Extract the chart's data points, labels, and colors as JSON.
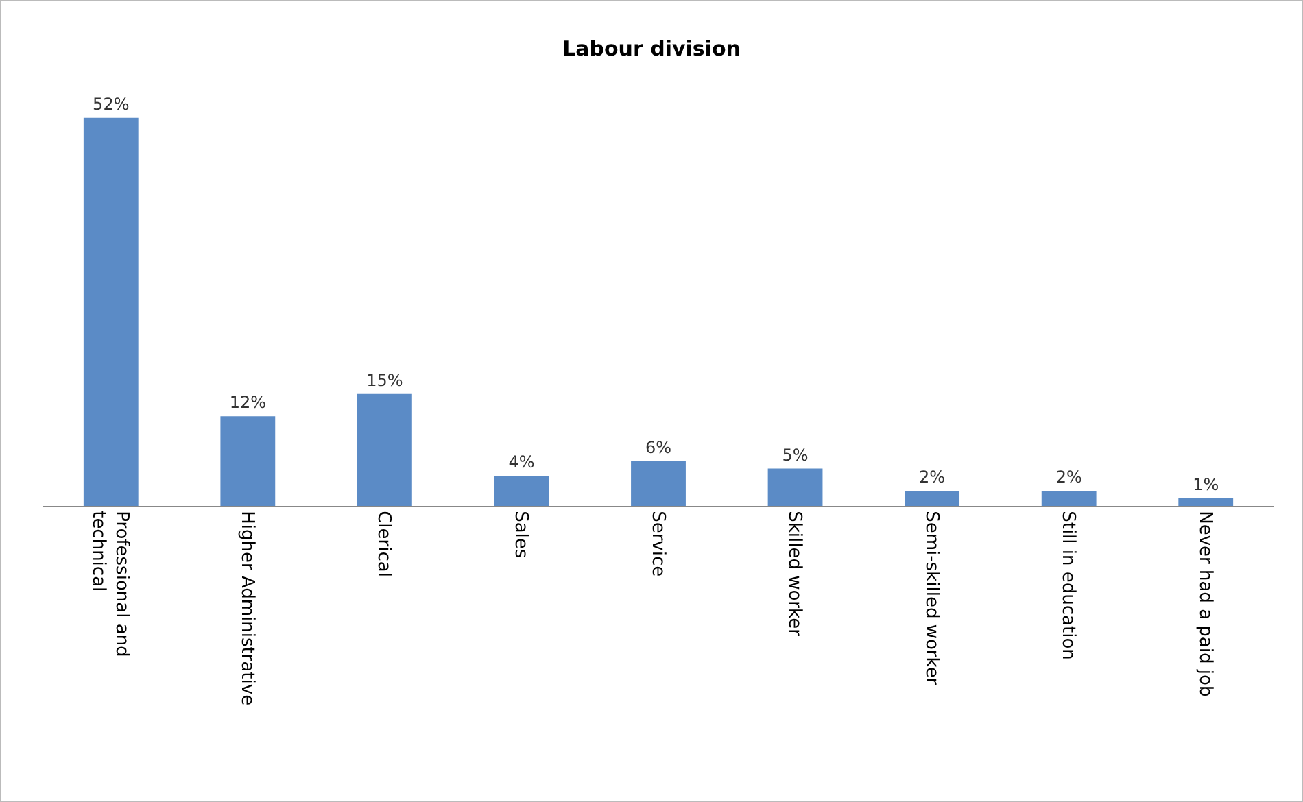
{
  "chart_data": {
    "type": "bar",
    "title": "Labour division",
    "categories": [
      "Professional and technical",
      "Higher Administrative",
      "Clerical",
      "Sales",
      "Service",
      "Skilled worker",
      "Semi-skilled worker",
      "Still in education",
      "Never had a paid job"
    ],
    "values": [
      52,
      12,
      15,
      4,
      6,
      5,
      2,
      2,
      1
    ],
    "value_labels": [
      "52%",
      "12%",
      "15%",
      "4%",
      "6%",
      "5%",
      "2%",
      "2%",
      "1%"
    ],
    "color": "#5b8bc6"
  }
}
